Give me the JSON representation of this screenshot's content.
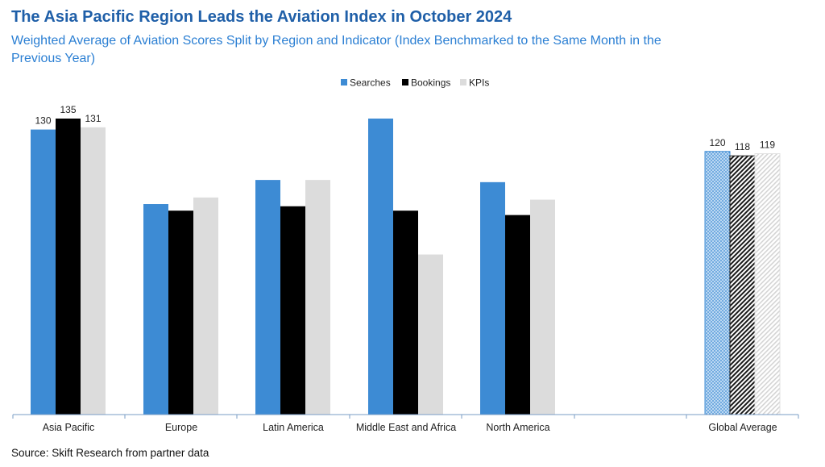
{
  "chart_data": {
    "type": "bar",
    "title": "The Asia Pacific Region Leads the Aviation Index in October 2024",
    "subtitle": "Weighted Average of Aviation Scores Split by Region and Indicator (Index Benchmarked to the Same Month in the Previous Year)",
    "source": "Source: Skift Research from partner data",
    "xlabel": "",
    "ylabel": "",
    "ylim": [
      0,
      135
    ],
    "grid": false,
    "legend_position": "top-center",
    "categories": [
      "Asia Pacific",
      "Europe",
      "Latin America",
      "Middle East and Africa",
      "North America",
      "Global Average"
    ],
    "series": [
      {
        "name": "Searches",
        "color": "#3d8bd4",
        "values": [
          130,
          96,
          107,
          135,
          106,
          120
        ]
      },
      {
        "name": "Bookings",
        "color": "#000000",
        "values": [
          135,
          93,
          95,
          93,
          91,
          118
        ]
      },
      {
        "name": "KPIs",
        "color": "#dcdcdc",
        "values": [
          131,
          99,
          107,
          73,
          98,
          119
        ]
      }
    ],
    "data_labels": [
      {
        "category": "Asia Pacific",
        "values": [
          "130",
          "135",
          "131"
        ]
      },
      {
        "category": "Global Average",
        "values": [
          "120",
          "118",
          "119"
        ]
      }
    ],
    "highlight_category": "Global Average"
  }
}
